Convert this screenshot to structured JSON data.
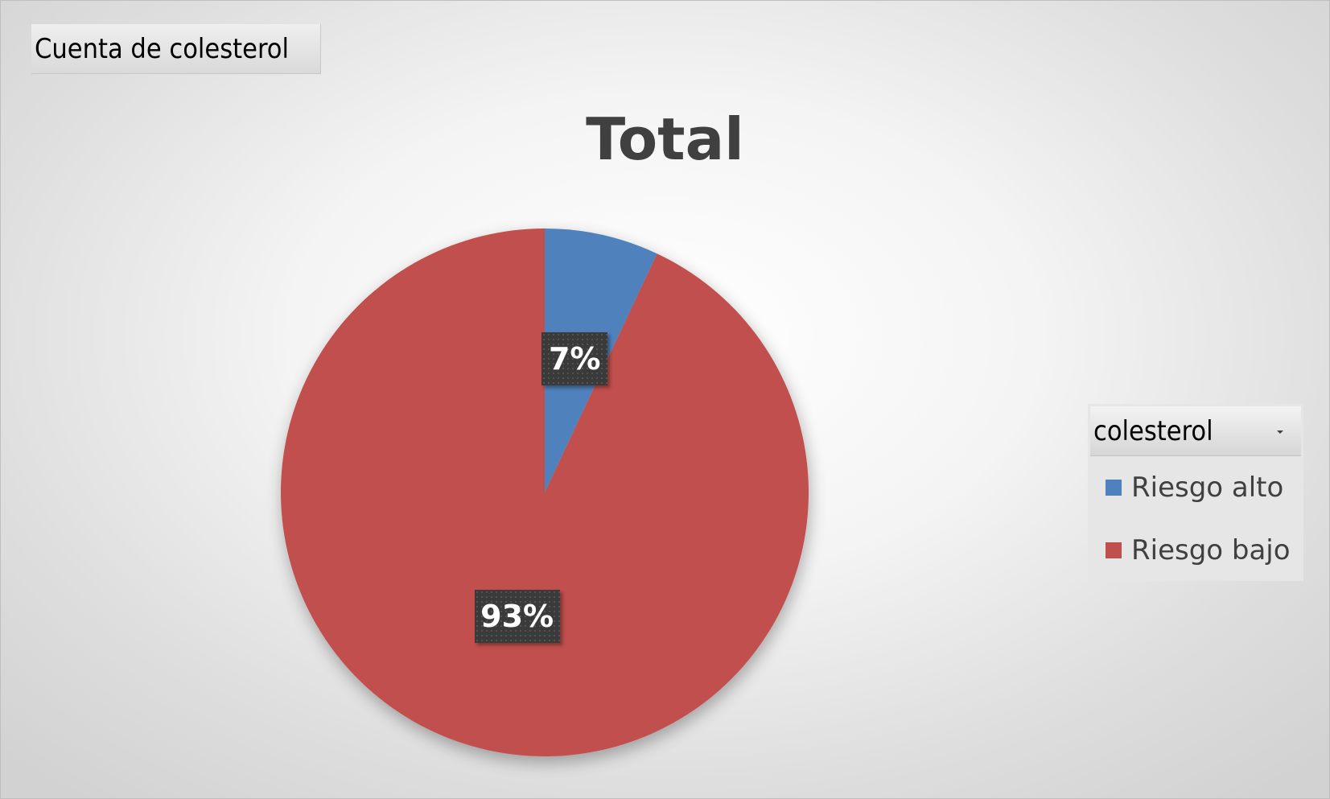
{
  "field_button": {
    "label": "Cuenta de colesterol"
  },
  "legend_field": {
    "label": "colesterol"
  },
  "chart_data": {
    "type": "pie",
    "title": "Total",
    "categories": [
      "Riesgo alto",
      "Riesgo bajo"
    ],
    "values": [
      7,
      93
    ],
    "data_labels": [
      "7%",
      "93%"
    ],
    "colors": [
      "#4F81BD",
      "#C0504D"
    ],
    "legend_position": "right"
  }
}
